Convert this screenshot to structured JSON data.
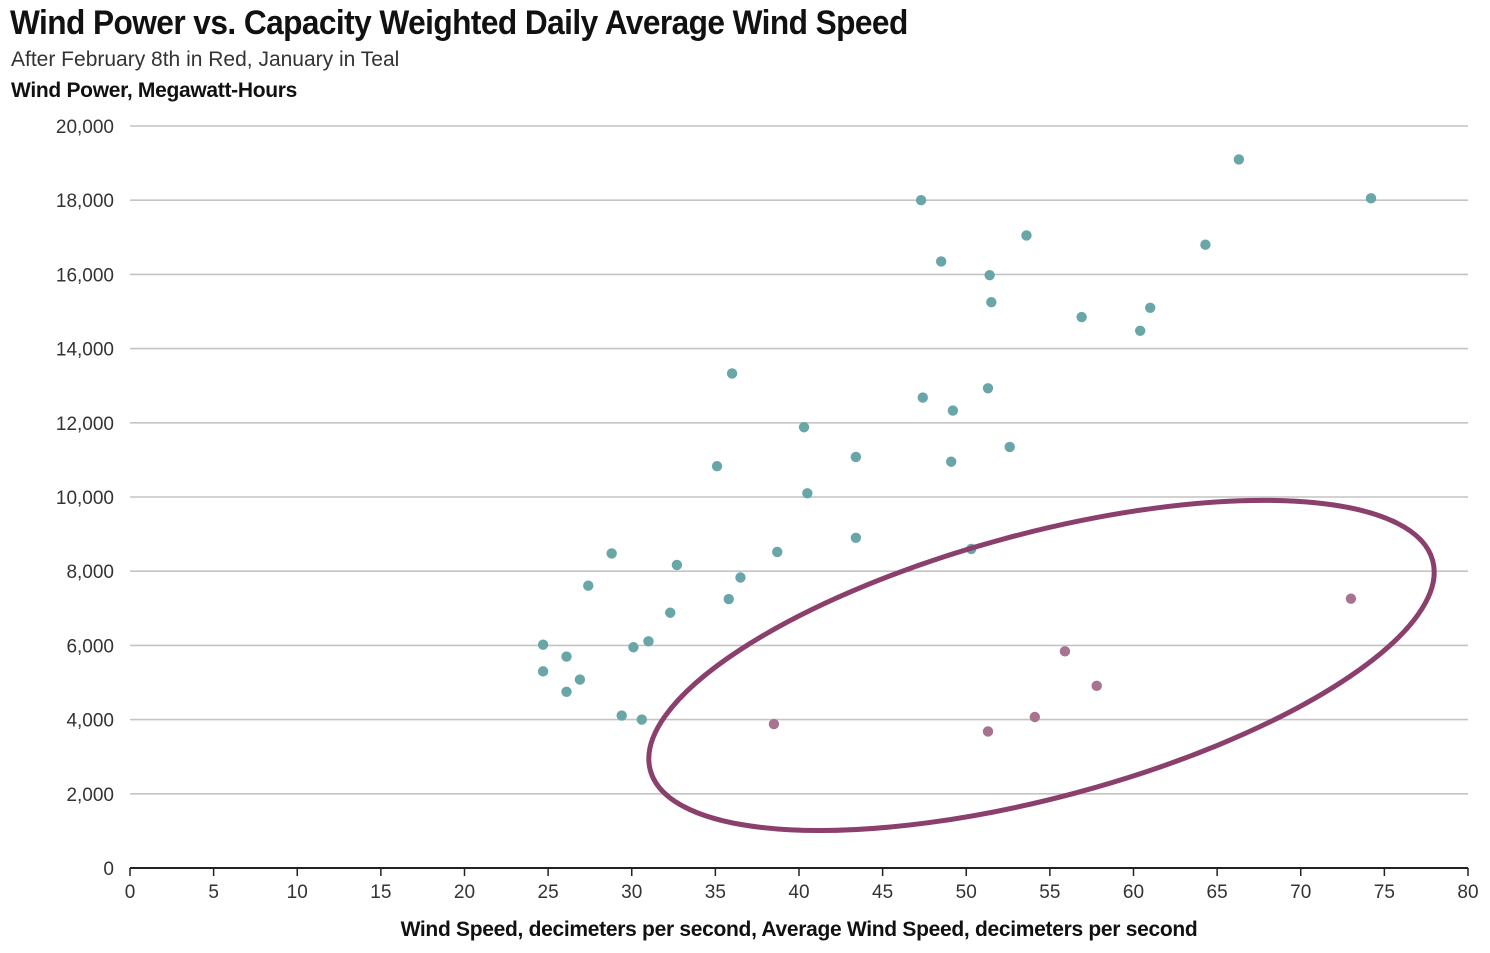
{
  "chart_data": {
    "type": "scatter",
    "title": "Wind Power vs. Capacity Weighted Daily Average Wind Speed",
    "subtitle": "After February 8th in Red, January in Teal",
    "ylabel": "Wind Power, Megawatt-Hours",
    "xlabel": "Wind Speed, decimeters per second, Average Wind Speed, decimeters per second",
    "xlim": [
      0,
      80
    ],
    "ylim": [
      0,
      20000
    ],
    "xticks": [
      0,
      5,
      10,
      15,
      20,
      25,
      30,
      35,
      40,
      45,
      50,
      55,
      60,
      65,
      70,
      75,
      80
    ],
    "yticks": [
      0,
      2000,
      4000,
      6000,
      8000,
      10000,
      12000,
      14000,
      16000,
      18000,
      20000
    ],
    "ytick_labels": [
      "0",
      "2,000",
      "4,000",
      "6,000",
      "8,000",
      "10,000",
      "12,000",
      "14,000",
      "16,000",
      "18,000",
      "20,000"
    ],
    "grid": true,
    "colors": {
      "january": "#69a6a8",
      "after_feb8": "#a7738f",
      "ellipse": "#8a3f6c",
      "grid": "#c4c4c4",
      "axis": "#222222"
    },
    "series": [
      {
        "name": "January",
        "color": "#69a6a8",
        "points": [
          [
            66.3,
            19100
          ],
          [
            74.2,
            18050
          ],
          [
            47.3,
            18000
          ],
          [
            53.6,
            17050
          ],
          [
            64.3,
            16800
          ],
          [
            48.5,
            16350
          ],
          [
            51.4,
            15980
          ],
          [
            51.5,
            15250
          ],
          [
            61.0,
            15100
          ],
          [
            56.9,
            14850
          ],
          [
            60.4,
            14480
          ],
          [
            36.0,
            13330
          ],
          [
            51.3,
            12930
          ],
          [
            47.4,
            12680
          ],
          [
            49.2,
            12330
          ],
          [
            40.3,
            11880
          ],
          [
            52.6,
            11350
          ],
          [
            43.4,
            11080
          ],
          [
            49.1,
            10950
          ],
          [
            35.1,
            10830
          ],
          [
            40.5,
            10100
          ],
          [
            43.4,
            8900
          ],
          [
            50.3,
            8600
          ],
          [
            28.8,
            8480
          ],
          [
            38.7,
            8520
          ],
          [
            32.7,
            8170
          ],
          [
            36.5,
            7830
          ],
          [
            27.4,
            7610
          ],
          [
            35.8,
            7250
          ],
          [
            32.3,
            6880
          ],
          [
            31.0,
            6110
          ],
          [
            30.1,
            5950
          ],
          [
            24.7,
            6020
          ],
          [
            26.1,
            5700
          ],
          [
            24.7,
            5300
          ],
          [
            26.9,
            5080
          ],
          [
            26.1,
            4750
          ],
          [
            29.4,
            4110
          ],
          [
            30.6,
            4000
          ]
        ]
      },
      {
        "name": "After February 8th",
        "color": "#a7738f",
        "points": [
          [
            73.0,
            7260
          ],
          [
            55.9,
            5840
          ],
          [
            57.8,
            4910
          ],
          [
            54.1,
            4070
          ],
          [
            38.5,
            3880
          ],
          [
            51.3,
            3680
          ]
        ]
      }
    ],
    "annotation": {
      "type": "ellipse",
      "center": [
        54.5,
        5460
      ],
      "note": "circles the After February 8th points"
    }
  }
}
